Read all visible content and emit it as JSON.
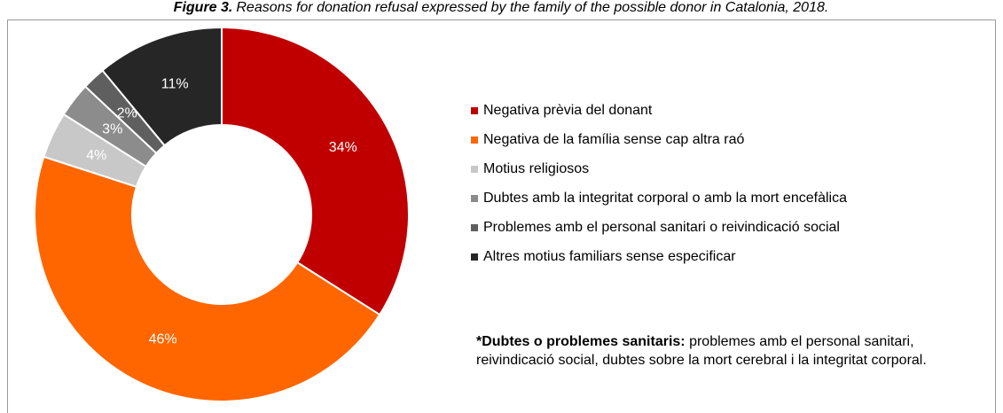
{
  "chart_data": {
    "type": "donut",
    "figure_label": "Figure 3.",
    "title": "Reasons for donation refusal expressed by the family of the possible donor in Catalonia, 2018.",
    "categories": [
      "Negativa prèvia del donant",
      "Negativa de la família sense cap altra raó",
      "Motius religiosos",
      "Dubtes amb la integritat corporal o amb la mort encefàlica",
      "Problemes amb el personal sanitari o reivindicació social",
      "Altres motius familiars sense especificar"
    ],
    "values": [
      34,
      46,
      4,
      3,
      2,
      11
    ],
    "value_labels": [
      "34%",
      "46%",
      "4%",
      "3%",
      "2%",
      "11%"
    ],
    "colors": [
      "#c00000",
      "#ff6600",
      "#c8c8c8",
      "#8c8c8c",
      "#5f5f5f",
      "#262626"
    ],
    "legend": "right",
    "note": {
      "label": "*Dubtes o problemes sanitaris:",
      "text": "problemes amb el personal sanitari, reivindicació social, dubtes sobre la mort cerebral i la integritat corporal."
    }
  }
}
